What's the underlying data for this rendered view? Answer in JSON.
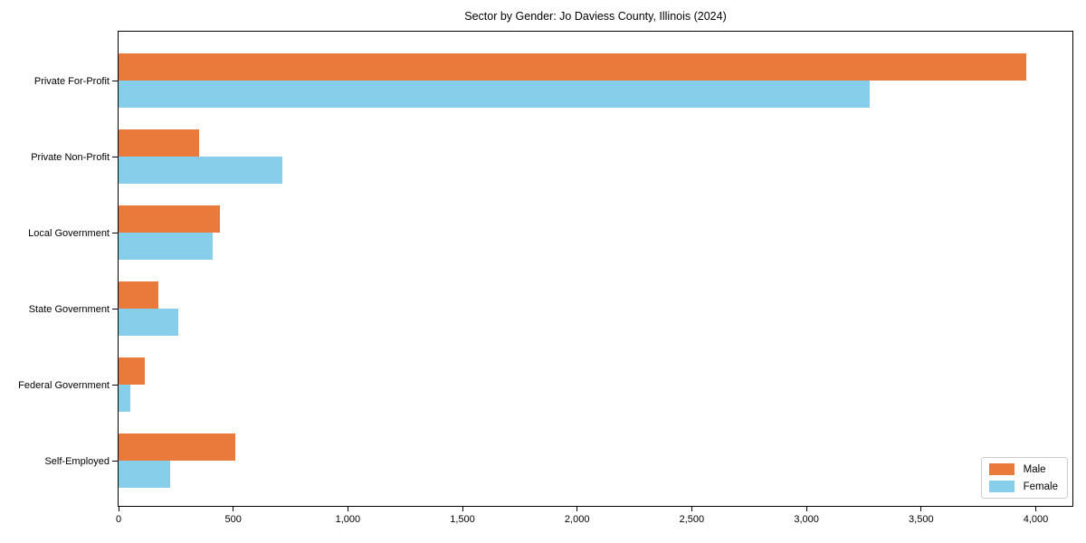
{
  "chart_data": {
    "type": "bar",
    "orientation": "horizontal",
    "title": "Sector by Gender: Jo Daviess County, Illinois (2024)",
    "categories": [
      "Private For-Profit",
      "Private Non-Profit",
      "Local Government",
      "State Government",
      "Federal Government",
      "Self-Employed"
    ],
    "series": [
      {
        "name": "Male",
        "color": "#e97a3c",
        "values": [
          3960,
          350,
          440,
          175,
          115,
          510
        ]
      },
      {
        "name": "Female",
        "color": "#87ceeb",
        "values": [
          3275,
          715,
          410,
          260,
          50,
          225
        ]
      }
    ],
    "xlabel": "",
    "ylabel": "",
    "xlim": [
      0,
      4160
    ],
    "xticks": [
      0,
      500,
      1000,
      1500,
      2000,
      2500,
      3000,
      3500,
      4000
    ],
    "xtick_labels": [
      "0",
      "500",
      "1,000",
      "1,500",
      "2,000",
      "2,500",
      "3,000",
      "3,500",
      "4,000"
    ],
    "legend_position": "lower right",
    "grid": false
  }
}
